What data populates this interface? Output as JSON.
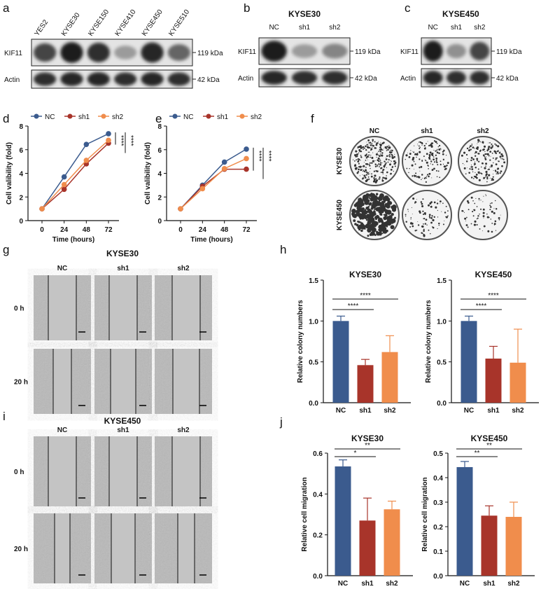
{
  "colors": {
    "NC": "#3b5b8e",
    "sh1": "#a8342a",
    "sh2": "#f08d4c"
  },
  "panels": {
    "a": "a",
    "b": "b",
    "c": "c",
    "d": "d",
    "e": "e",
    "f": "f",
    "g": "g",
    "h": "h",
    "i": "i",
    "j": "j"
  },
  "blot_a": {
    "lanes": [
      "YES2",
      "KYSE30",
      "KYSE150",
      "KYSE410",
      "KYSE450",
      "KYSE510"
    ],
    "kif11_intensity": [
      0.75,
      0.95,
      0.85,
      0.35,
      0.9,
      0.6
    ],
    "actin_intensity": [
      0.85,
      0.9,
      0.9,
      0.85,
      0.9,
      0.85
    ],
    "row1": "KIF11",
    "row2": "Actin",
    "mw1": "119 kDa",
    "mw2": "42 kDa"
  },
  "blot_b": {
    "title": "KYSE30",
    "lanes": [
      "NC",
      "sh1",
      "sh2"
    ],
    "kif11_intensity": [
      0.95,
      0.35,
      0.45
    ],
    "actin_intensity": [
      0.9,
      0.85,
      0.85
    ],
    "row1": "KIF11",
    "row2": "Actin",
    "mw1": "119 kDa",
    "mw2": "42 kDa"
  },
  "blot_c": {
    "title": "KYSE450",
    "lanes": [
      "NC",
      "sh1",
      "sh2"
    ],
    "kif11_intensity": [
      0.95,
      0.4,
      0.75
    ],
    "actin_intensity": [
      0.9,
      0.85,
      0.85
    ],
    "row1": "KIF11",
    "row2": "Actin",
    "mw1": "119 kDa",
    "mw2": "42 kDa"
  },
  "colony_f": {
    "columns": [
      "NC",
      "sh1",
      "sh2"
    ],
    "rows": [
      "KYSE30",
      "KYSE450"
    ]
  },
  "wound_g": {
    "title": "KYSE30",
    "columns": [
      "NC",
      "sh1",
      "sh2"
    ],
    "rows": [
      "0 h",
      "20 h"
    ]
  },
  "wound_i": {
    "title": "KYSE450",
    "columns": [
      "NC",
      "sh1",
      "sh2"
    ],
    "rows": [
      "0 h",
      "20 h"
    ]
  },
  "chart_data": [
    {
      "id": "d",
      "type": "line",
      "xlabel": "Time (hours)",
      "ylabel": "Cell valibility (fold)",
      "x": [
        0,
        24,
        48,
        72
      ],
      "ylim": [
        0,
        8
      ],
      "yticks": [
        0,
        2,
        4,
        6,
        8
      ],
      "legend": "top",
      "series": [
        {
          "name": "NC",
          "values": [
            1,
            3.7,
            6.45,
            7.35
          ]
        },
        {
          "name": "sh1",
          "values": [
            1,
            2.65,
            4.8,
            6.55
          ]
        },
        {
          "name": "sh2",
          "values": [
            1,
            3.05,
            5.1,
            6.8
          ]
        }
      ],
      "significance": [
        "****",
        "****"
      ]
    },
    {
      "id": "e",
      "type": "line",
      "xlabel": "Time (hours)",
      "ylabel": "Cell valibility (fold)",
      "x": [
        0,
        24,
        48,
        72
      ],
      "ylim": [
        0,
        8
      ],
      "yticks": [
        0,
        2,
        4,
        6,
        8
      ],
      "legend": "top",
      "series": [
        {
          "name": "NC",
          "values": [
            1,
            3.0,
            4.95,
            6.05
          ]
        },
        {
          "name": "sh1",
          "values": [
            1,
            2.9,
            4.35,
            4.35
          ]
        },
        {
          "name": "sh2",
          "values": [
            1,
            2.7,
            4.4,
            5.25
          ]
        }
      ],
      "significance": [
        "****",
        "****"
      ]
    },
    {
      "id": "h1",
      "type": "bar",
      "title": "KYSE30",
      "ylabel": "Relative colony numbers",
      "categories": [
        "NC",
        "sh1",
        "sh2"
      ],
      "values": [
        1.0,
        0.46,
        0.62
      ],
      "errors": [
        0.06,
        0.07,
        0.2
      ],
      "ylim": [
        0,
        1.5
      ],
      "yticks": [
        "0.0",
        "0.5",
        "1.0",
        "1.5"
      ],
      "significance": [
        "****",
        "****"
      ]
    },
    {
      "id": "h2",
      "type": "bar",
      "title": "KYSE450",
      "ylabel": "Relative colony numbers",
      "categories": [
        "NC",
        "sh1",
        "sh2"
      ],
      "values": [
        1.0,
        0.54,
        0.49
      ],
      "errors": [
        0.06,
        0.15,
        0.41
      ],
      "ylim": [
        0,
        1.5
      ],
      "yticks": [
        "0.0",
        "0.5",
        "1.0",
        "1.5"
      ],
      "significance": [
        "****",
        "****"
      ]
    },
    {
      "id": "j1",
      "type": "bar",
      "title": "KYSE30",
      "ylabel": "Relative cell migration",
      "categories": [
        "NC",
        "sh1",
        "sh2"
      ],
      "values": [
        0.535,
        0.27,
        0.325
      ],
      "errors": [
        0.032,
        0.11,
        0.04
      ],
      "ylim": [
        0,
        0.6
      ],
      "yticks": [
        "0.0",
        "0.2",
        "0.4",
        "0.6"
      ],
      "significance": [
        "*",
        "**"
      ]
    },
    {
      "id": "j2",
      "type": "bar",
      "title": "KYSE450",
      "ylabel": "Relative cell migration",
      "categories": [
        "NC",
        "sh1",
        "sh2"
      ],
      "values": [
        0.443,
        0.245,
        0.24
      ],
      "errors": [
        0.023,
        0.04,
        0.06
      ],
      "ylim": [
        0,
        0.5
      ],
      "yticks": [
        "0.0",
        "0.1",
        "0.2",
        "0.3",
        "0.4",
        "0.5"
      ],
      "significance": [
        "**",
        "**"
      ]
    }
  ]
}
